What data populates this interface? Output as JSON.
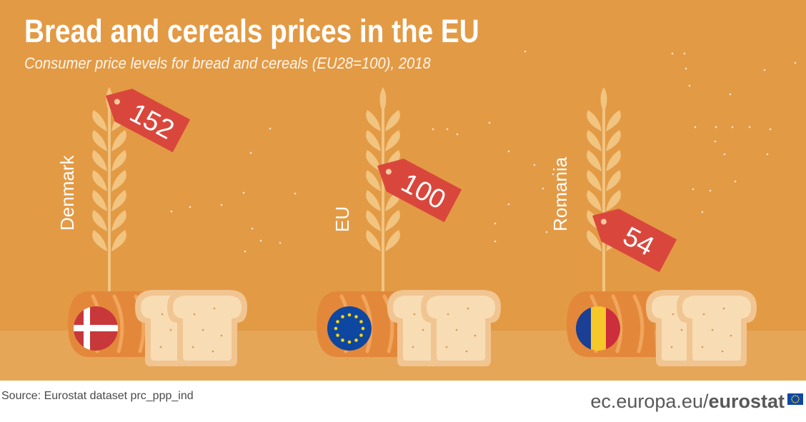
{
  "header": {
    "title": "Bread and cereals prices in the EU",
    "subtitle": "Consumer price levels for bread and cereals (EU28=100), 2018"
  },
  "chart_data": {
    "type": "bar",
    "title": "Bread and cereals prices in the EU",
    "subtitle": "Consumer price levels for bread and cereals (EU28=100), 2018",
    "categories": [
      "Denmark",
      "EU",
      "Romania"
    ],
    "values": [
      152,
      100,
      54
    ],
    "flags": [
      "denmark-flag-icon",
      "eu-flag-icon",
      "romania-flag-icon"
    ]
  },
  "footer": {
    "source": "Source: Eurostat dataset prc_ppp_ind",
    "brand_domain": "ec.europa.eu/",
    "brand_name": "eurostat"
  },
  "colors": {
    "background": "#e39a45",
    "ground": "#e6a658",
    "wheat": "#f1c480",
    "price_tag": "#d9473c",
    "loaf": "#e3883a",
    "slice": "#f1c591",
    "slice_inner": "#f8dcb4",
    "denmark_red": "#c8383a",
    "eu_blue": "#0e47a1",
    "eu_star": "#ffd700",
    "romania_blue": "#1b3f94",
    "romania_yellow": "#f6c82a",
    "romania_red": "#cc2e3b"
  }
}
